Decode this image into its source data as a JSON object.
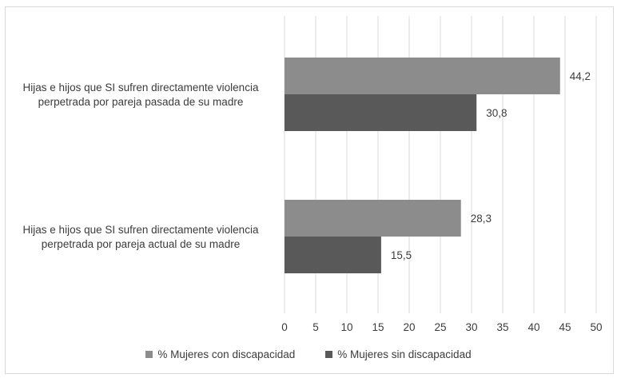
{
  "chart_data": {
    "type": "bar",
    "orientation": "horizontal",
    "categories": [
      "Hijas e hijos que SI sufren directamente violencia perpetrada por pareja pasada de su madre",
      "Hijas e hijos que SI sufren directamente violencia perpetrada por pareja actual de su madre"
    ],
    "category_label_lines": [
      [
        "Hijas e hijos que SI sufren directamente violencia",
        "perpetrada por pareja pasada de su madre"
      ],
      [
        "Hijas e hijos que SI sufren directamente violencia",
        "perpetrada por pareja actual de su madre"
      ]
    ],
    "series": [
      {
        "name": "% Mujeres con discapacidad",
        "values": [
          44.2,
          28.3
        ],
        "labels": [
          "44,2",
          "28,3"
        ],
        "color": "#8c8c8c"
      },
      {
        "name": "% Mujeres sin discapacidad",
        "values": [
          30.8,
          15.5
        ],
        "labels": [
          "30,8",
          "15,5"
        ],
        "color": "#595959"
      }
    ],
    "xlim": [
      0,
      50
    ],
    "xticks": [
      0,
      5,
      10,
      15,
      20,
      25,
      30,
      35,
      40,
      45,
      50
    ],
    "grid": true,
    "legend_position": "bottom"
  }
}
